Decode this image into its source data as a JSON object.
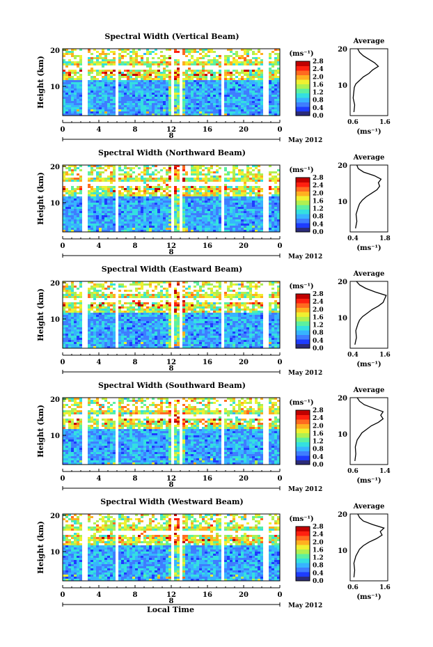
{
  "common": {
    "ylabel": "Height (km)",
    "xticks": [
      "0",
      "4",
      "8",
      "12",
      "16",
      "20",
      "0"
    ],
    "yticks": [
      "20",
      "10"
    ],
    "date_label": "May 2012",
    "day_label": "8",
    "unit_label": "(ms⁻¹)",
    "colorbar_ticks": [
      "2.8",
      "2.4",
      "2.0",
      "1.6",
      "1.2",
      "0.8",
      "0.4",
      "0.0"
    ],
    "avg_title": "Average",
    "avg_xlabel": "(ms⁻¹)",
    "xlabel_bottom": "Local Time",
    "colors": {
      "scale": [
        "#2b2b7a",
        "#1e3cff",
        "#3f7dff",
        "#37b4ff",
        "#34e0e0",
        "#5cf0a0",
        "#b0f050",
        "#f0f030",
        "#ffb020",
        "#ff6a20",
        "#ff2010",
        "#c00000"
      ]
    }
  },
  "panels": [
    {
      "title": "Spectral Width (Vertical Beam)",
      "avg_xticks": [
        "0.6",
        "1.6"
      ],
      "avg_range": [
        0.6,
        1.6
      ]
    },
    {
      "title": "Spectral Width (Northward Beam)",
      "avg_xticks": [
        "0.4",
        "1.8"
      ],
      "avg_range": [
        0.4,
        1.8
      ]
    },
    {
      "title": "Spectral Width (Eastward Beam)",
      "avg_xticks": [
        "0.4",
        "1.6"
      ],
      "avg_range": [
        0.4,
        1.6
      ]
    },
    {
      "title": "Spectral Width (Southward Beam)",
      "avg_xticks": [
        "0.6",
        "1.4"
      ],
      "avg_range": [
        0.6,
        1.4
      ]
    },
    {
      "title": "Spectral Width (Westward Beam)",
      "avg_xticks": [
        "0.6",
        "1.6"
      ],
      "avg_range": [
        0.6,
        1.6
      ]
    }
  ],
  "chart_data": [
    {
      "type": "heatmap",
      "title": "Spectral Width (Vertical Beam)",
      "xlabel": "",
      "ylabel": "Height (km)",
      "xlim": [
        0,
        24
      ],
      "ylim": [
        1,
        20
      ],
      "colorbar_range": [
        0,
        3.0
      ]
    },
    {
      "type": "line",
      "title": "Average",
      "xlabel": "(ms⁻¹)",
      "ylabel": "",
      "xlim": [
        0.6,
        1.6
      ],
      "ylim": [
        1,
        20
      ],
      "x": [
        0.7,
        0.72,
        0.68,
        0.7,
        0.71,
        0.75,
        0.85,
        0.95,
        1.1,
        1.2,
        1.35,
        1.25,
        1.1,
        0.95,
        0.85,
        0.8
      ],
      "y": [
        2,
        4,
        6,
        8,
        9,
        10,
        11,
        12,
        13,
        14,
        15,
        16,
        17,
        18,
        19,
        20
      ]
    },
    {
      "type": "heatmap",
      "title": "Spectral Width (Northward Beam)",
      "xlabel": "",
      "ylabel": "Height (km)",
      "xlim": [
        0,
        24
      ],
      "ylim": [
        1,
        20
      ],
      "colorbar_range": [
        0,
        3.0
      ]
    },
    {
      "type": "line",
      "title": "Average",
      "xlabel": "(ms⁻¹)",
      "ylabel": "",
      "xlim": [
        0.4,
        1.8
      ],
      "ylim": [
        1,
        20
      ],
      "x": [
        0.6,
        0.65,
        0.62,
        0.7,
        0.75,
        0.85,
        1.0,
        1.2,
        1.4,
        1.5,
        1.45,
        1.55,
        1.3,
        0.9,
        0.7,
        0.65
      ],
      "y": [
        2,
        4,
        6,
        8,
        9,
        10,
        11,
        12,
        13,
        14,
        15,
        16,
        17,
        18,
        19,
        20
      ]
    },
    {
      "type": "heatmap",
      "title": "Spectral Width (Eastward Beam)",
      "xlabel": "",
      "ylabel": "Height (km)",
      "xlim": [
        0,
        24
      ],
      "ylim": [
        1,
        20
      ],
      "colorbar_range": [
        0,
        3.0
      ]
    },
    {
      "type": "line",
      "title": "Average",
      "xlabel": "(ms⁻¹)",
      "ylabel": "",
      "xlim": [
        0.4,
        1.6
      ],
      "ylim": [
        1,
        20
      ],
      "x": [
        0.55,
        0.6,
        0.58,
        0.65,
        0.7,
        0.8,
        0.95,
        1.1,
        1.3,
        1.45,
        1.5,
        1.55,
        1.2,
        0.9,
        0.7,
        0.6
      ],
      "y": [
        2,
        4,
        6,
        8,
        9,
        10,
        11,
        12,
        13,
        14,
        15,
        16,
        17,
        18,
        19,
        20
      ]
    },
    {
      "type": "heatmap",
      "title": "Spectral Width (Southward Beam)",
      "xlabel": "",
      "ylabel": "Height (km)",
      "xlim": [
        0,
        24
      ],
      "ylim": [
        1,
        20
      ],
      "colorbar_range": [
        0,
        3.0
      ]
    },
    {
      "type": "line",
      "title": "Average",
      "xlabel": "(ms⁻¹)",
      "ylabel": "",
      "xlim": [
        0.6,
        1.4
      ],
      "ylim": [
        1,
        20
      ],
      "x": [
        0.7,
        0.72,
        0.71,
        0.75,
        0.8,
        0.85,
        0.95,
        1.05,
        1.2,
        1.3,
        1.25,
        1.3,
        1.1,
        0.9,
        0.8,
        0.75
      ],
      "y": [
        2,
        4,
        6,
        8,
        9,
        10,
        11,
        12,
        13,
        14,
        15,
        16,
        17,
        18,
        19,
        20
      ]
    },
    {
      "type": "heatmap",
      "title": "Spectral Width (Westward Beam)",
      "xlabel": "Local Time",
      "ylabel": "Height (km)",
      "xlim": [
        0,
        24
      ],
      "ylim": [
        1,
        20
      ],
      "colorbar_range": [
        0,
        3.0
      ]
    },
    {
      "type": "line",
      "title": "Average",
      "xlabel": "(ms⁻¹)",
      "ylabel": "",
      "xlim": [
        0.6,
        1.6
      ],
      "ylim": [
        1,
        20
      ],
      "x": [
        0.7,
        0.72,
        0.7,
        0.75,
        0.8,
        0.85,
        0.95,
        1.1,
        1.3,
        1.45,
        1.4,
        1.5,
        1.2,
        0.95,
        0.85,
        0.8
      ],
      "y": [
        2,
        4,
        6,
        8,
        9,
        10,
        11,
        12,
        13,
        14,
        15,
        16,
        17,
        18,
        19,
        20
      ]
    }
  ]
}
